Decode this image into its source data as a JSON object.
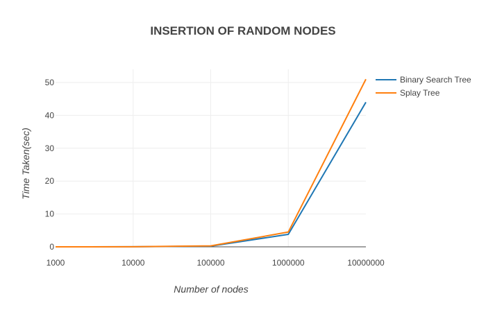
{
  "chart_data": {
    "type": "line",
    "title": "INSERTION OF RANDOM NODES",
    "xlabel": "Number of nodes",
    "ylabel": "Time Taken(sec)",
    "x_scale": "log",
    "x": [
      1000,
      10000,
      100000,
      1000000,
      10000000
    ],
    "x_tick_labels": [
      "1000",
      "10000",
      "100000",
      "1000000",
      "10000000"
    ],
    "ylim": [
      0,
      52
    ],
    "y_ticks": [
      0,
      10,
      20,
      30,
      40,
      50
    ],
    "y_tick_labels": [
      "0",
      "10",
      "20",
      "30",
      "40",
      "50"
    ],
    "grid": true,
    "legend_position": "right",
    "series": [
      {
        "name": "Binary Search Tree",
        "color": "#1f77b4",
        "values": [
          0.0,
          0.02,
          0.2,
          3.8,
          44.0
        ]
      },
      {
        "name": "Splay Tree",
        "color": "#ff7f0e",
        "values": [
          0.0,
          0.03,
          0.3,
          4.5,
          51.0
        ]
      }
    ]
  }
}
